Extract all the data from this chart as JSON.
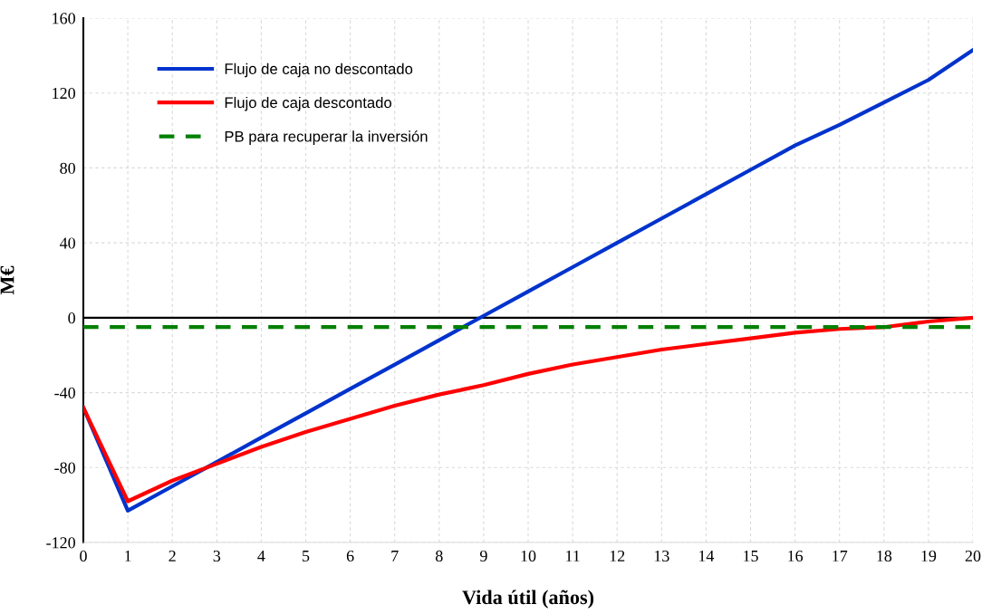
{
  "chart_data": {
    "type": "line",
    "xlabel": "Vida útil (años)",
    "ylabel": "M€",
    "x": [
      0,
      1,
      2,
      3,
      4,
      5,
      6,
      7,
      8,
      9,
      10,
      11,
      12,
      13,
      14,
      15,
      16,
      17,
      18,
      19,
      20
    ],
    "series": [
      {
        "name": "Flujo de caja no descontado",
        "color": "#0033cc",
        "values": [
          -48,
          -103,
          -90,
          -77,
          -64,
          -51,
          -38,
          -25,
          -12,
          1,
          14,
          27,
          40,
          53,
          66,
          79,
          92,
          103,
          115,
          127,
          143
        ]
      },
      {
        "name": "Flujo de caja descontado",
        "color": "#ff0000",
        "values": [
          -48,
          -98,
          -87,
          -78,
          -69,
          -61,
          -54,
          -47,
          -41,
          -36,
          -30,
          -25,
          -21,
          -17,
          -14,
          -11,
          -8,
          -6,
          -5,
          -2,
          0
        ]
      },
      {
        "name": "PB para recuperar la inversión",
        "color": "#008000",
        "line_style": "dashed",
        "values": [
          -5,
          -5,
          -5,
          -5,
          -5,
          -5,
          -5,
          -5,
          -5,
          -5,
          -5,
          -5,
          -5,
          -5,
          -5,
          -5,
          -5,
          -5,
          -5,
          -5,
          -5
        ]
      }
    ],
    "xlim": [
      0,
      20
    ],
    "xticks": [
      0,
      1,
      2,
      3,
      4,
      5,
      6,
      7,
      8,
      9,
      10,
      11,
      12,
      13,
      14,
      15,
      16,
      17,
      18,
      19,
      20
    ],
    "ylim": [
      -120,
      160
    ],
    "yticks": [
      -120,
      -80,
      -40,
      0,
      40,
      80,
      120,
      160
    ],
    "ref_lines": [
      {
        "axis": "y",
        "value": 0,
        "color": "#000000"
      }
    ],
    "grid": true,
    "legend": "top left",
    "line_style": "solid"
  }
}
